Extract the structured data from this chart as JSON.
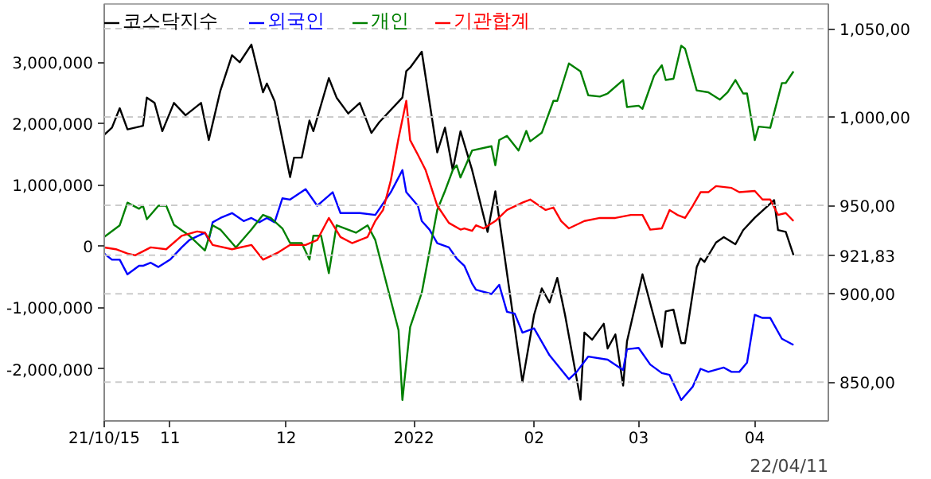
{
  "chart_data": {
    "type": "line",
    "legend": "top left",
    "grid": "y2",
    "marker": "none",
    "line_style": "solid",
    "xlim": [
      "2021-10-15",
      "2022-04-20"
    ],
    "xticks": [
      {
        "value": "2021-10-15",
        "label": "21/10/15"
      },
      {
        "value": "2021-11-01",
        "label": "11"
      },
      {
        "value": "2021-12-01",
        "label": "12"
      },
      {
        "value": "2022-01-03",
        "label": "2022"
      },
      {
        "value": "2022-02-03",
        "label": "02"
      },
      {
        "value": "2022-03-02",
        "label": "03"
      },
      {
        "value": "2022-04-01",
        "label": "04"
      }
    ],
    "ylim": [
      -2850000,
      3950000
    ],
    "yticks": [
      {
        "value": -2000000,
        "label": "-2,000,000"
      },
      {
        "value": -1000000,
        "label": "-1,000,000"
      },
      0,
      {
        "value": 1000000,
        "label": "1,000,000"
      },
      {
        "value": 2000000,
        "label": "2,000,000"
      },
      {
        "value": 3000000,
        "label": "3,000,000"
      }
    ],
    "y2lim": [
      828,
      1064
    ],
    "y2ticks": [
      {
        "value": 921.83,
        "label": "921,83"
      },
      {
        "value": 850,
        "label": "850,00"
      },
      {
        "value": 900,
        "label": "900,00"
      },
      {
        "value": 950,
        "label": "950,00"
      },
      {
        "value": 1000,
        "label": "1,000,00"
      },
      {
        "value": 1050,
        "label": "1,050,00"
      }
    ],
    "annotations": [
      "22/04/11"
    ],
    "series": [
      {
        "name": "코스닥지수",
        "color": "#000000",
        "axis": "y2",
        "x": [
          "2021-10-15",
          "2021-10-17",
          "2021-10-19",
          "2021-10-21",
          "2021-10-25",
          "2021-10-26",
          "2021-10-28",
          "2021-10-30",
          "2021-11-02",
          "2021-11-05",
          "2021-11-09",
          "2021-11-11",
          "2021-11-14",
          "2021-11-17",
          "2021-11-19",
          "2021-11-22",
          "2021-11-25",
          "2021-11-26",
          "2021-11-28",
          "2021-12-02",
          "2021-12-03",
          "2021-12-05",
          "2021-12-07",
          "2021-12-08",
          "2021-12-12",
          "2021-12-14",
          "2021-12-17",
          "2021-12-20",
          "2021-12-23",
          "2021-12-25",
          "2021-12-31",
          "2022-01-01",
          "2022-01-02",
          "2022-01-05",
          "2022-01-09",
          "2022-01-11",
          "2022-01-13",
          "2022-01-15",
          "2022-01-18",
          "2022-01-22",
          "2022-01-24",
          "2022-01-31",
          "2022-02-03",
          "2022-02-05",
          "2022-02-07",
          "2022-02-09",
          "2022-02-11",
          "2022-02-15",
          "2022-02-16",
          "2022-02-18",
          "2022-02-21",
          "2022-02-22",
          "2022-02-24",
          "2022-02-26",
          "2022-02-27",
          "2022-03-03",
          "2022-03-08",
          "2022-03-09",
          "2022-03-11",
          "2022-03-13",
          "2022-03-14",
          "2022-03-17",
          "2022-03-18",
          "2022-03-19",
          "2022-03-22",
          "2022-03-24",
          "2022-03-27",
          "2022-03-29",
          "2022-04-01",
          "2022-04-06",
          "2022-04-07",
          "2022-04-09",
          "2022-04-11"
        ],
        "values": [
          990,
          994,
          1005,
          993,
          995,
          1011,
          1008,
          992,
          1008,
          1001,
          1008,
          987,
          1015,
          1035,
          1031,
          1041,
          1014,
          1019,
          1009,
          966,
          977,
          977,
          998,
          992,
          1022,
          1011,
          1002,
          1008,
          991,
          997,
          1011,
          1026,
          1028,
          1037,
          980,
          994,
          970,
          992,
          970,
          935,
          958,
          850,
          888,
          903,
          895,
          909,
          888,
          840,
          878,
          874,
          883,
          869,
          877,
          848,
          873,
          911,
          870,
          890,
          891,
          872,
          872,
          915,
          920,
          918,
          929,
          932,
          928,
          936,
          943,
          953,
          936,
          935,
          921.83
        ]
      },
      {
        "name": "외국인",
        "color": "#0000ff",
        "x": [
          "2021-10-15",
          "2021-10-17",
          "2021-10-19",
          "2021-10-21",
          "2021-10-24",
          "2021-10-25",
          "2021-10-27",
          "2021-10-29",
          "2021-11-01",
          "2021-11-04",
          "2021-11-06",
          "2021-11-10",
          "2021-11-11",
          "2021-11-12",
          "2021-11-14",
          "2021-11-17",
          "2021-11-20",
          "2021-11-22",
          "2021-11-24",
          "2021-11-26",
          "2021-11-28",
          "2021-11-30",
          "2021-12-02",
          "2021-12-06",
          "2021-12-09",
          "2021-12-13",
          "2021-12-15",
          "2021-12-20",
          "2021-12-24",
          "2021-12-28",
          "2021-12-30",
          "2021-12-31",
          "2022-01-01",
          "2022-01-04",
          "2022-01-05",
          "2022-01-07",
          "2022-01-09",
          "2022-01-12",
          "2022-01-14",
          "2022-01-16",
          "2022-01-18",
          "2022-01-19",
          "2022-01-23",
          "2022-01-25",
          "2022-01-27",
          "2022-01-29",
          "2022-01-31",
          "2022-02-03",
          "2022-02-07",
          "2022-02-12",
          "2022-02-14",
          "2022-02-17",
          "2022-02-22",
          "2022-02-26",
          "2022-02-27",
          "2022-03-02",
          "2022-03-05",
          "2022-03-08",
          "2022-03-10",
          "2022-03-13",
          "2022-03-16",
          "2022-03-18",
          "2022-03-20",
          "2022-03-24",
          "2022-03-26",
          "2022-03-28",
          "2022-03-30",
          "2022-04-01",
          "2022-04-03",
          "2022-04-05",
          "2022-04-08",
          "2022-04-11"
        ],
        "values": [
          -120000,
          -220000,
          -220000,
          -460000,
          -320000,
          -320000,
          -270000,
          -340000,
          -220000,
          -20000,
          100000,
          220000,
          100000,
          390000,
          460000,
          540000,
          410000,
          460000,
          390000,
          460000,
          390000,
          780000,
          760000,
          930000,
          660000,
          880000,
          540000,
          540000,
          510000,
          880000,
          1120000,
          1240000,
          880000,
          660000,
          410000,
          270000,
          50000,
          -20000,
          -200000,
          -320000,
          -610000,
          -710000,
          -780000,
          -630000,
          -1070000,
          -1100000,
          -1410000,
          -1340000,
          -1780000,
          -2170000,
          -2050000,
          -1800000,
          -1850000,
          -2020000,
          -1680000,
          -1660000,
          -1930000,
          -2070000,
          -2100000,
          -2510000,
          -2290000,
          -2000000,
          -2050000,
          -1980000,
          -2050000,
          -2050000,
          -1900000,
          -1120000,
          -1170000,
          -1170000,
          -1510000,
          -1610000
        ]
      },
      {
        "name": "개인",
        "color": "#008000",
        "x": [
          "2021-10-15",
          "2021-10-19",
          "2021-10-21",
          "2021-10-24",
          "2021-10-25",
          "2021-10-26",
          "2021-10-29",
          "2021-10-31",
          "2021-11-02",
          "2021-11-06",
          "2021-11-10",
          "2021-11-12",
          "2021-11-14",
          "2021-11-18",
          "2021-11-22",
          "2021-11-25",
          "2021-11-27",
          "2021-11-30",
          "2021-12-02",
          "2021-12-05",
          "2021-12-07",
          "2021-12-08",
          "2021-12-10",
          "2021-12-12",
          "2021-12-14",
          "2021-12-19",
          "2021-12-22",
          "2021-12-24",
          "2021-12-28",
          "2021-12-30",
          "2021-12-31",
          "2022-01-02",
          "2022-01-05",
          "2022-01-09",
          "2022-01-11",
          "2022-01-13",
          "2022-01-14",
          "2022-01-15",
          "2022-01-18",
          "2022-01-23",
          "2022-01-24",
          "2022-01-25",
          "2022-01-27",
          "2022-01-30",
          "2022-02-01",
          "2022-02-02",
          "2022-02-05",
          "2022-02-08",
          "2022-02-09",
          "2022-02-12",
          "2022-02-15",
          "2022-02-17",
          "2022-02-20",
          "2022-02-22",
          "2022-02-26",
          "2022-02-27",
          "2022-03-02",
          "2022-03-03",
          "2022-03-06",
          "2022-03-08",
          "2022-03-09",
          "2022-03-11",
          "2022-03-13",
          "2022-03-14",
          "2022-03-17",
          "2022-03-20",
          "2022-03-23",
          "2022-03-25",
          "2022-03-27",
          "2022-03-29",
          "2022-03-30",
          "2022-04-01",
          "2022-04-02",
          "2022-04-05",
          "2022-04-08",
          "2022-04-09",
          "2022-04-11"
        ],
        "values": [
          150000,
          340000,
          710000,
          610000,
          660000,
          440000,
          660000,
          660000,
          350000,
          170000,
          -70000,
          340000,
          270000,
          -20000,
          270000,
          510000,
          460000,
          290000,
          50000,
          50000,
          -220000,
          170000,
          170000,
          -440000,
          340000,
          220000,
          340000,
          100000,
          -880000,
          -1370000,
          -2510000,
          -1320000,
          -760000,
          590000,
          900000,
          1240000,
          1320000,
          1120000,
          1560000,
          1630000,
          1320000,
          1730000,
          1800000,
          1560000,
          1880000,
          1710000,
          1850000,
          2370000,
          2370000,
          2980000,
          2850000,
          2460000,
          2440000,
          2490000,
          2710000,
          2270000,
          2290000,
          2240000,
          2780000,
          2950000,
          2710000,
          2730000,
          3270000,
          3220000,
          2540000,
          2510000,
          2390000,
          2510000,
          2710000,
          2490000,
          2490000,
          1730000,
          1950000,
          1930000,
          2660000,
          2660000,
          2850000
        ]
      },
      {
        "name": "기관합계",
        "color": "#ff0000",
        "x": [
          "2021-10-15",
          "2021-10-18",
          "2021-10-21",
          "2021-10-23",
          "2021-10-27",
          "2021-10-31",
          "2021-11-04",
          "2021-11-08",
          "2021-11-10",
          "2021-11-12",
          "2021-11-17",
          "2021-11-22",
          "2021-11-25",
          "2021-11-29",
          "2021-12-02",
          "2021-12-06",
          "2021-12-09",
          "2021-12-12",
          "2021-12-15",
          "2021-12-18",
          "2021-12-22",
          "2021-12-24",
          "2021-12-26",
          "2021-12-28",
          "2021-12-30",
          "2022-01-01",
          "2022-01-02",
          "2022-01-04",
          "2022-01-06",
          "2022-01-09",
          "2022-01-12",
          "2022-01-15",
          "2022-01-16",
          "2022-01-18",
          "2022-01-19",
          "2022-01-21",
          "2022-01-24",
          "2022-01-27",
          "2022-01-31",
          "2022-02-02",
          "2022-02-06",
          "2022-02-08",
          "2022-02-10",
          "2022-02-12",
          "2022-02-16",
          "2022-02-20",
          "2022-02-24",
          "2022-02-28",
          "2022-03-03",
          "2022-03-05",
          "2022-03-08",
          "2022-03-10",
          "2022-03-12",
          "2022-03-14",
          "2022-03-16",
          "2022-03-18",
          "2022-03-20",
          "2022-03-22",
          "2022-03-26",
          "2022-03-28",
          "2022-04-01",
          "2022-04-03",
          "2022-04-05",
          "2022-04-07",
          "2022-04-09",
          "2022-04-11"
        ],
        "values": [
          -20000,
          -50000,
          -120000,
          -150000,
          -20000,
          -50000,
          170000,
          240000,
          220000,
          20000,
          -50000,
          20000,
          -220000,
          -100000,
          20000,
          20000,
          100000,
          460000,
          150000,
          50000,
          150000,
          410000,
          590000,
          1070000,
          1760000,
          2370000,
          1730000,
          1490000,
          1240000,
          660000,
          380000,
          270000,
          290000,
          250000,
          340000,
          290000,
          410000,
          590000,
          710000,
          760000,
          590000,
          630000,
          410000,
          290000,
          410000,
          460000,
          460000,
          510000,
          510000,
          270000,
          290000,
          590000,
          510000,
          460000,
          660000,
          880000,
          880000,
          980000,
          950000,
          880000,
          900000,
          760000,
          760000,
          510000,
          540000,
          410000
        ]
      }
    ]
  }
}
